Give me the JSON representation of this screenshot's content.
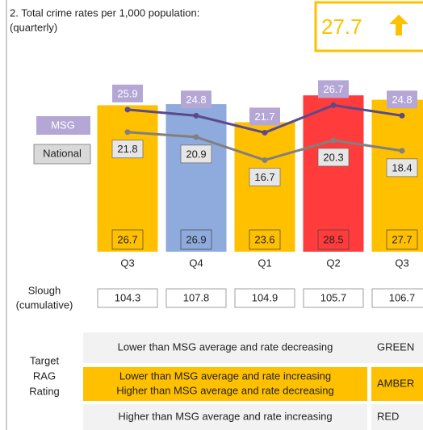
{
  "header": {
    "title": "2. Total crime rates per 1,000 population:",
    "subtitle": "(quarterly)",
    "headline": "27.7"
  },
  "chart_data": {
    "type": "bar",
    "categories": [
      "Q3",
      "Q4",
      "Q1",
      "Q2",
      "Q3"
    ],
    "values": [
      26.7,
      26.9,
      23.6,
      28.5,
      27.7
    ],
    "colors": [
      "#FFC000",
      "#8FAADC",
      "#FFC000",
      "#FF3B3B",
      "#FFC000"
    ],
    "series": [
      {
        "name": "MSG",
        "type": "line",
        "color": "#5B4A8B",
        "label_color": "#B4A7D6",
        "values": [
          25.9,
          24.8,
          21.7,
          26.7,
          24.8
        ]
      },
      {
        "name": "National",
        "type": "line",
        "color": "#808080",
        "label_color": "#E6E6E6",
        "values": [
          21.8,
          20.9,
          16.7,
          20.3,
          18.4
        ]
      }
    ],
    "ylim": [
      0,
      30
    ]
  },
  "cumulative": {
    "label": [
      "Slough",
      "(cumulative)"
    ],
    "values": [
      "104.3",
      "107.8",
      "104.9",
      "105.7",
      "106.7"
    ]
  },
  "rag": {
    "label": [
      "Target",
      "RAG",
      "Rating"
    ],
    "rows": [
      {
        "text": [
          "Lower than MSG average and rate decreasing"
        ],
        "rating": "GREEN"
      },
      {
        "text": [
          "Lower than MSG average and rate increasing",
          "Higher than MSG average and rate decreasing"
        ],
        "rating": "AMBER"
      },
      {
        "text": [
          "Higher than MSG average and rate increasing"
        ],
        "rating": "RED"
      }
    ]
  }
}
